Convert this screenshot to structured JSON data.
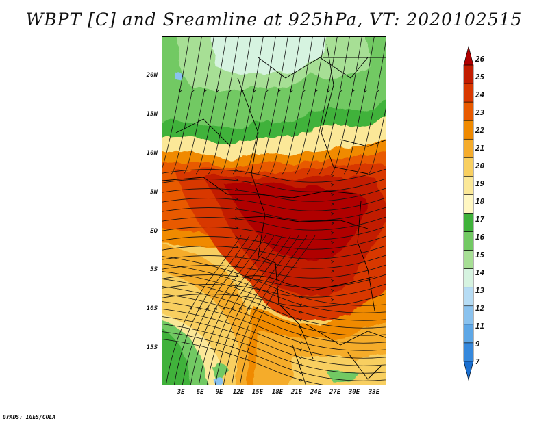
{
  "title": "WBPT [C] and Sreamline at 925hPa, VT: 2020102515",
  "footer": "GrADS: IGES/COLA",
  "map": {
    "lat_ticks": [
      "20N",
      "15N",
      "10N",
      "5N",
      "EQ",
      "5S",
      "10S",
      "15S"
    ],
    "lon_ticks": [
      "3E",
      "6E",
      "9E",
      "12E",
      "15E",
      "18E",
      "21E",
      "24E",
      "27E",
      "30E",
      "33E"
    ],
    "lat_range": [
      -20,
      24.5
    ],
    "lon_range": [
      0,
      35
    ]
  },
  "colorbar": {
    "levels": [
      "26",
      "25",
      "24",
      "23",
      "22",
      "21",
      "20",
      "19",
      "18",
      "17",
      "16",
      "15",
      "14",
      "13",
      "12",
      "11",
      "9",
      "7"
    ],
    "colors": [
      "#b00000",
      "#c21c00",
      "#d83800",
      "#e85a00",
      "#f08a00",
      "#f5ac2c",
      "#f8cf60",
      "#fbe898",
      "#fff7c2",
      "#3fb23a",
      "#72c963",
      "#a7df95",
      "#d6f3e0",
      "#b6dcf4",
      "#8ac2ee",
      "#5ea7e6",
      "#3588dc",
      "#1a6fd0"
    ]
  }
}
